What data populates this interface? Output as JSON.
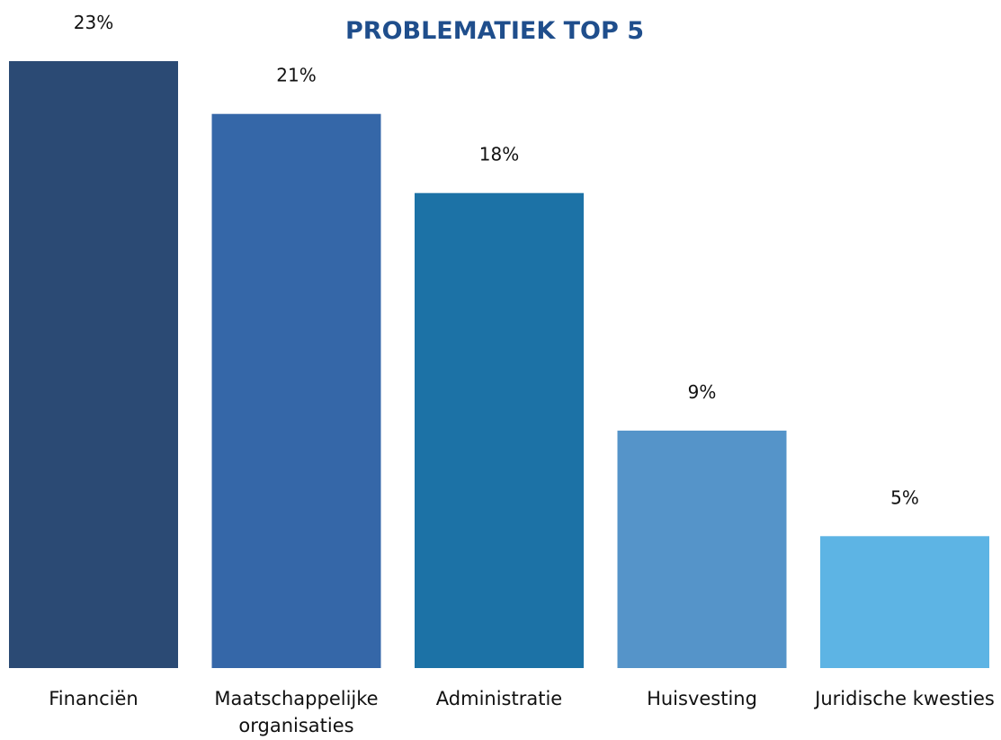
{
  "chart_data": {
    "type": "bar",
    "title": "PROBLEMATIEK TOP 5",
    "xlabel": "",
    "ylabel": "",
    "ylim": [
      0,
      23
    ],
    "grid": false,
    "legend": "none",
    "categories": [
      [
        "Financiën"
      ],
      [
        "Maatschappelijke",
        "organisaties"
      ],
      [
        "Administratie"
      ],
      [
        "Huisvesting"
      ],
      [
        "Juridische kwesties"
      ]
    ],
    "values": [
      23,
      21,
      18,
      9,
      5
    ],
    "data_labels": [
      "23%",
      "21%",
      "18%",
      "9%",
      "5%"
    ],
    "colors": [
      "#2b4a74",
      "#3567a8",
      "#1c72a6",
      "#5594c9",
      "#5db4e4"
    ],
    "title_color": "#1f4e8c"
  }
}
